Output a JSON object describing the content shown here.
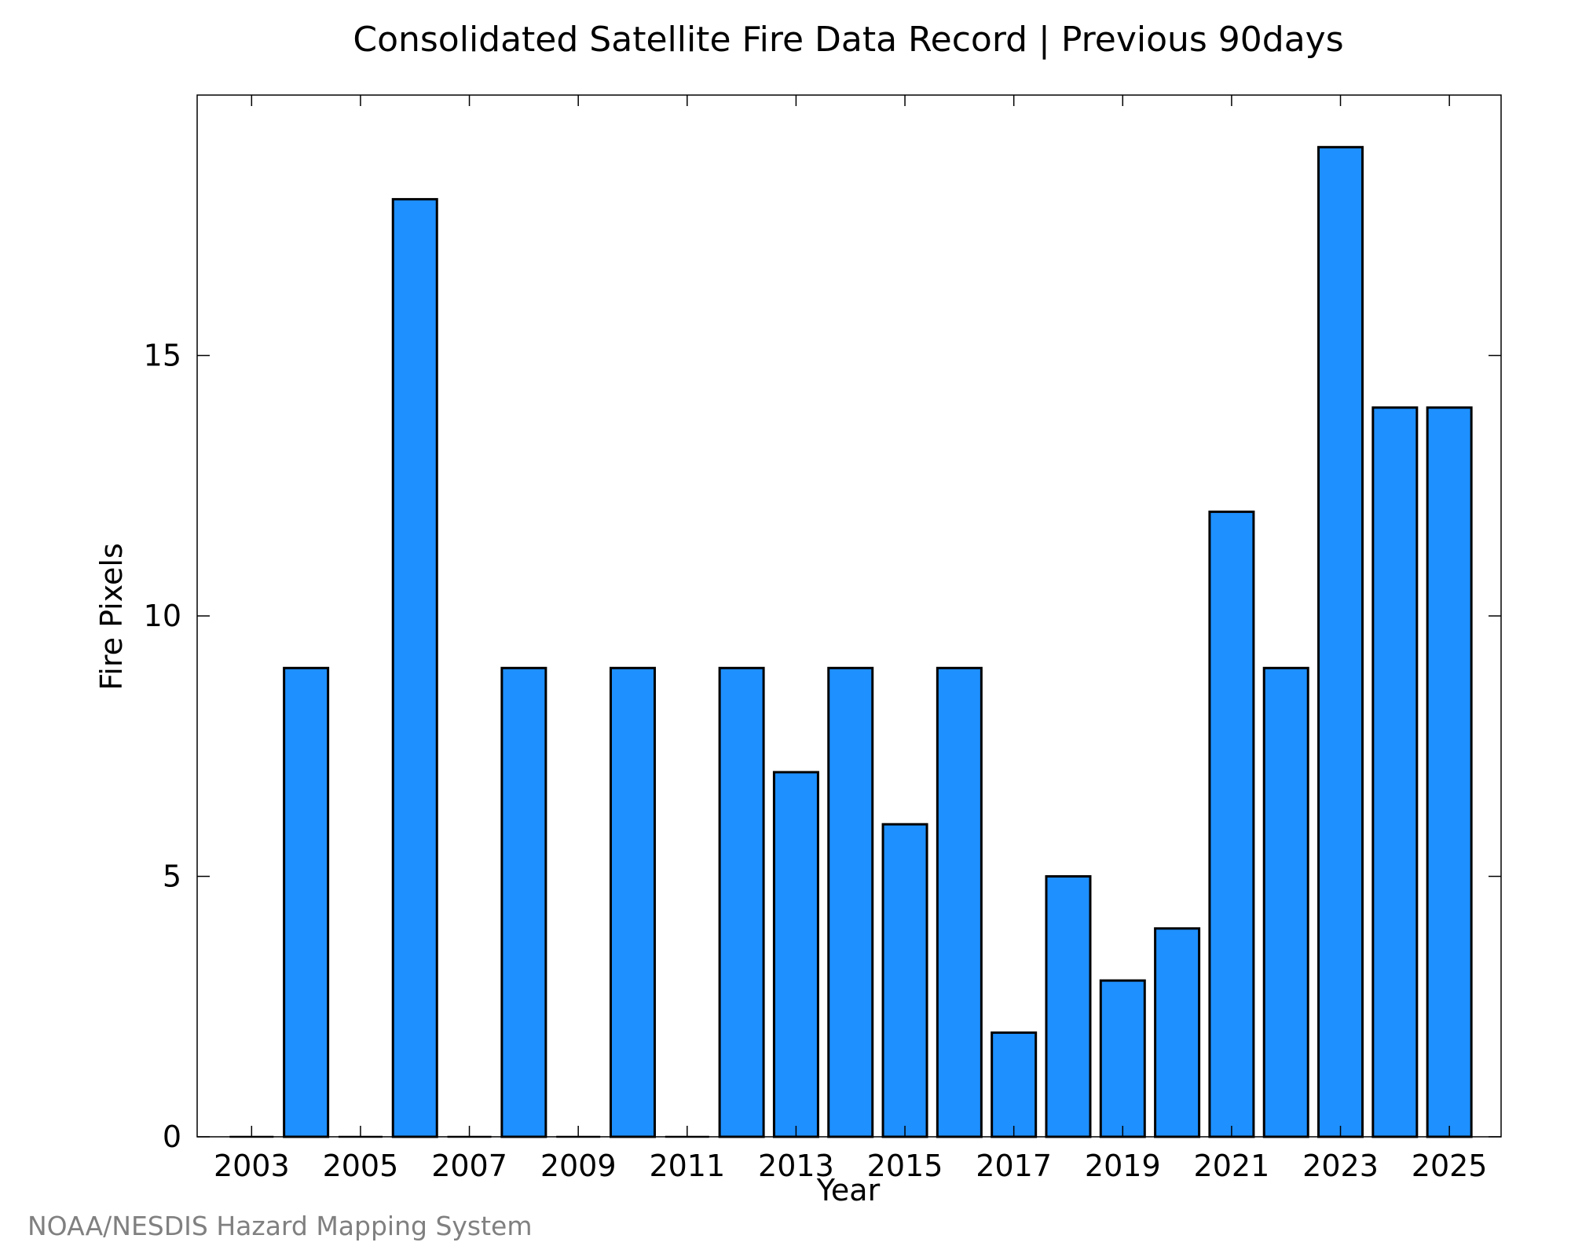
{
  "chart_data": {
    "type": "bar",
    "title": "Consolidated Satellite Fire Data Record | Previous 90days",
    "xlabel": "Year",
    "ylabel": "Fire Pixels",
    "credit": "NOAA/NESDIS Hazard Mapping System",
    "bar_color": "#1e90ff",
    "categories": [
      2003,
      2004,
      2005,
      2006,
      2007,
      2008,
      2009,
      2010,
      2011,
      2012,
      2013,
      2014,
      2015,
      2016,
      2017,
      2018,
      2019,
      2020,
      2021,
      2022,
      2023,
      2024,
      2025
    ],
    "values": [
      0,
      9,
      0,
      18,
      0,
      9,
      0,
      9,
      0,
      9,
      7,
      9,
      6,
      9,
      2,
      5,
      3,
      4,
      12,
      9,
      19,
      14,
      14
    ],
    "xlim": [
      2002,
      2025.95
    ],
    "ylim": [
      0,
      20
    ],
    "x_ticks": [
      2003,
      2005,
      2007,
      2009,
      2011,
      2013,
      2015,
      2017,
      2019,
      2021,
      2023,
      2025
    ],
    "y_ticks": [
      0,
      5,
      10,
      15
    ],
    "grid": false,
    "legend": "none"
  }
}
